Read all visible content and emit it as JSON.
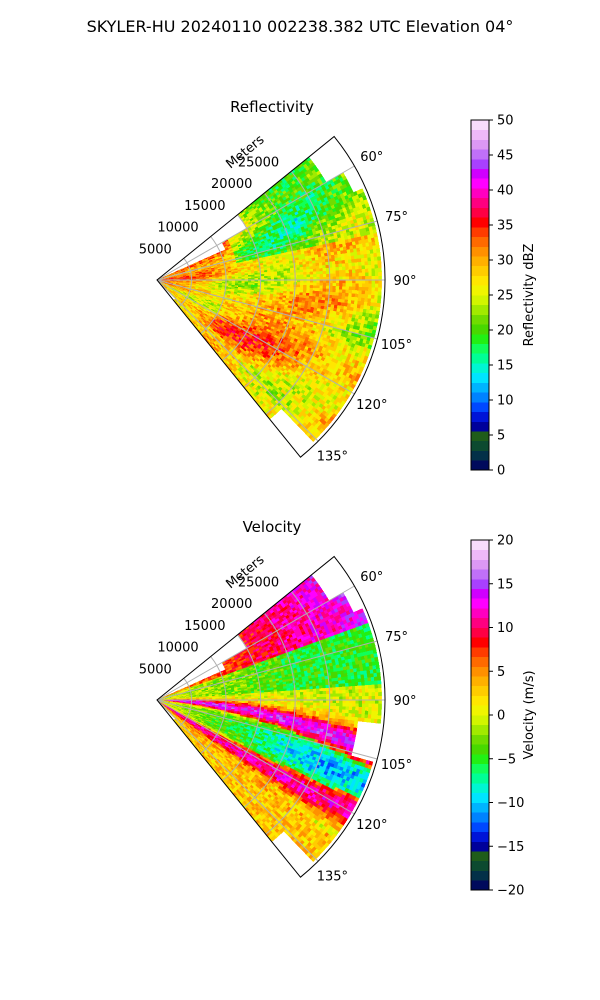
{
  "suptitle": "SKYLER-HU  20240110  002238.382 UTC Elevation 04°",
  "chart_data": [
    {
      "type": "heatmap",
      "projection": "polar-sector",
      "title": "Reflectivity",
      "range_label": "Meters",
      "range_ticks": [
        5000,
        10000,
        15000,
        20000,
        25000
      ],
      "range_tick_labels": [
        "5000",
        "10000",
        "15000",
        "20000",
        "25000"
      ],
      "rmax": 33000,
      "azimuth_range_deg": [
        51,
        141
      ],
      "azimuth_ticks": [
        60,
        75,
        90,
        105,
        120,
        135
      ],
      "azimuth_tick_labels": [
        "60°",
        "75°",
        "90°",
        "105°",
        "120°",
        "135°"
      ],
      "grid": true,
      "colorbar": {
        "label": "Reflectivity dBZ",
        "min": 0,
        "max": 50,
        "ticks": [
          0,
          5,
          10,
          15,
          20,
          25,
          30,
          35,
          40,
          45,
          50
        ],
        "tick_labels": [
          "0",
          "5",
          "10",
          "15",
          "20",
          "25",
          "30",
          "35",
          "40",
          "45",
          "50"
        ],
        "colors": [
          "#000a5c",
          "#033048",
          "#0d4a30",
          "#1f5c1a",
          "#00009a",
          "#0014d8",
          "#0048ff",
          "#0082ff",
          "#00b4ff",
          "#00e4ff",
          "#00f6d2",
          "#00ff96",
          "#10ff5a",
          "#22f014",
          "#48d800",
          "#70dc00",
          "#a2ea00",
          "#d2f500",
          "#f0f500",
          "#ffe600",
          "#ffcc00",
          "#ffb000",
          "#ff9000",
          "#ff6a00",
          "#ff3c00",
          "#ff0000",
          "#ff0044",
          "#ff0080",
          "#ff00c0",
          "#ff00ff",
          "#d000ff",
          "#a840ff",
          "#c070f8",
          "#dc98f4",
          "#eeb8f8",
          "#f8dcfc"
        ]
      }
    },
    {
      "type": "heatmap",
      "projection": "polar-sector",
      "title": "Velocity",
      "range_label": "Meters",
      "range_ticks": [
        5000,
        10000,
        15000,
        20000,
        25000
      ],
      "range_tick_labels": [
        "5000",
        "10000",
        "15000",
        "20000",
        "25000"
      ],
      "rmax": 33000,
      "azimuth_range_deg": [
        51,
        141
      ],
      "azimuth_ticks": [
        60,
        75,
        90,
        105,
        120,
        135
      ],
      "azimuth_tick_labels": [
        "60°",
        "75°",
        "90°",
        "105°",
        "120°",
        "135°"
      ],
      "grid": true,
      "colorbar": {
        "label": "Velocity (m/s)",
        "min": -20,
        "max": 20,
        "ticks": [
          -20,
          -15,
          -10,
          -5,
          0,
          5,
          10,
          15,
          20
        ],
        "tick_labels": [
          "−20",
          "−15",
          "−10",
          "−5",
          "0",
          "5",
          "10",
          "15",
          "20"
        ],
        "colors": [
          "#000a5c",
          "#033048",
          "#0d4a30",
          "#1f5c1a",
          "#00009a",
          "#0014d8",
          "#0048ff",
          "#0082ff",
          "#00b4ff",
          "#00e4ff",
          "#00f6d2",
          "#00ff96",
          "#10ff5a",
          "#22f014",
          "#48d800",
          "#70dc00",
          "#a2ea00",
          "#d2f500",
          "#f0f500",
          "#ffe600",
          "#ffcc00",
          "#ffb000",
          "#ff9000",
          "#ff6a00",
          "#ff3c00",
          "#ff0000",
          "#ff0044",
          "#ff0080",
          "#ff00c0",
          "#ff00ff",
          "#d000ff",
          "#a840ff",
          "#c070f8",
          "#dc98f4",
          "#eeb8f8",
          "#f8dcfc"
        ]
      }
    }
  ]
}
